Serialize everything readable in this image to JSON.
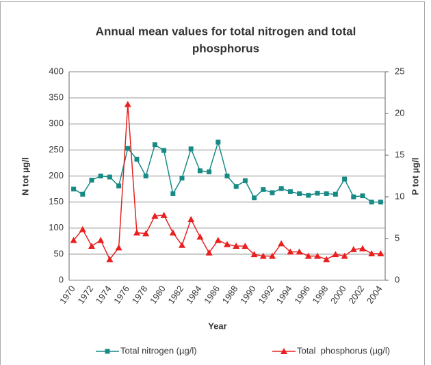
{
  "chart_data": {
    "type": "line",
    "title": [
      "Annual mean values for total nitrogen and total",
      "phosphorus"
    ],
    "x_label": "Year",
    "y_label": "N tot µg/l",
    "y2_label": "P tot µg/l",
    "categories": [
      "1970",
      null,
      "1972",
      null,
      "1974",
      null,
      "1976",
      null,
      "1978",
      null,
      "1980",
      null,
      "1982",
      null,
      "1984",
      null,
      "1986",
      null,
      "1988",
      null,
      "1990",
      null,
      "1992",
      null,
      "1994",
      null,
      "1996",
      null,
      "1998",
      null,
      "2000",
      null,
      "2002",
      null,
      "2004"
    ],
    "series": [
      {
        "name": "Total nitrogen (µg/l)",
        "color": "#178a86",
        "marker": "square",
        "values": [
          175,
          165,
          192,
          200,
          198,
          181,
          253,
          232,
          200,
          260,
          249,
          166,
          196,
          252,
          210,
          208,
          265,
          200,
          180,
          191,
          158,
          174,
          168,
          176,
          170,
          166,
          163,
          167,
          166,
          165,
          194,
          160,
          162,
          150,
          150
        ]
      },
      {
        "name": "Total  phosphorus (µg/l)",
        "color": "#e8201f",
        "marker": "triangle",
        "axis": "y2",
        "values": [
          4.8,
          6.1,
          4.1,
          4.8,
          2.5,
          3.9,
          21.1,
          5.7,
          5.6,
          7.7,
          7.8,
          5.7,
          4.2,
          7.3,
          5.2,
          3.3,
          4.8,
          4.3,
          4.1,
          4.1,
          3.1,
          2.9,
          2.9,
          4.4,
          3.4,
          3.4,
          2.9,
          2.9,
          2.5,
          3.1,
          2.9,
          3.7,
          3.8,
          3.2,
          3.2
        ]
      }
    ],
    "ylim": [
      0,
      400
    ],
    "yticks": [
      0,
      50,
      100,
      150,
      200,
      250,
      300,
      350,
      400
    ],
    "y2lim": [
      0,
      25
    ],
    "y2ticks": [
      0,
      5,
      10,
      15,
      20,
      25
    ],
    "grid": true,
    "legend": "bottom"
  }
}
